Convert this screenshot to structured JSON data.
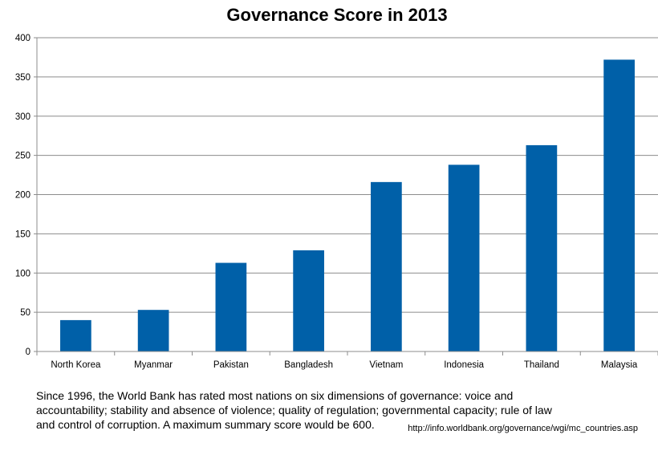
{
  "chart_data": {
    "type": "bar",
    "title": "Governance Score in 2013",
    "xlabel": "",
    "ylabel": "",
    "categories": [
      "North Korea",
      "Myanmar",
      "Pakistan",
      "Bangladesh",
      "Vietnam",
      "Indonesia",
      "Thailand",
      "Malaysia"
    ],
    "values": [
      40,
      53,
      113,
      129,
      216,
      238,
      263,
      372
    ],
    "ylim": [
      0,
      400
    ],
    "yticks": [
      0,
      50,
      100,
      150,
      200,
      250,
      300,
      350,
      400
    ],
    "grid": true,
    "legend": "none",
    "bar_color": "#0060a8"
  },
  "caption": {
    "line1": "Since 1996, the World Bank has rated most nations on six dimensions of governance: voice and",
    "line2": "accountability; stability and absence of violence; quality of regulation; governmental capacity; rule of law",
    "line3": "and control of corruption.  A maximum summary score would be 600."
  },
  "source": "http://info.worldbank.org/governance/wgi/mc_countries.asp"
}
